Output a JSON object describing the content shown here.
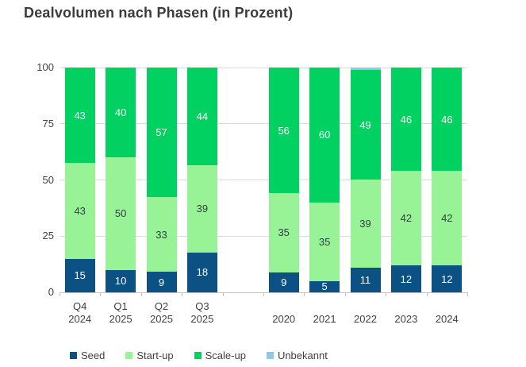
{
  "title": "Dealvolumen nach Phasen (in Prozent)",
  "colors": {
    "background": "#FFFFFF",
    "title_text": "#3B3B3B",
    "axis_text": "#3F3F3F",
    "gridline": "#DBDBDB",
    "axis_line": "#C2C2C2",
    "seed": "#0B5183",
    "startup": "#97F395",
    "scaleup": "#00D160",
    "unbekannt": "#8FC8EC"
  },
  "chart_data": {
    "type": "bar",
    "stacked": true,
    "unit": "percent",
    "title": "Dealvolumen nach Phasen (in Prozent)",
    "ylim": [
      0,
      100
    ],
    "yticks": [
      0,
      25,
      50,
      75,
      100
    ],
    "grid": true,
    "legend_position": "bottom",
    "categories": [
      "Q4 2024",
      "Q1 2025",
      "Q2 2025",
      "Q3 2025",
      "",
      "2020",
      "2021",
      "2022",
      "2023",
      "2024"
    ],
    "series": [
      {
        "name": "Seed",
        "color": "#0B5183",
        "label_color": "#FFFFFF",
        "show_labels": true,
        "values": [
          15,
          10,
          9,
          18,
          null,
          9,
          5,
          11,
          12,
          12
        ]
      },
      {
        "name": "Start-up",
        "color": "#97F395",
        "label_color": "#343F46",
        "show_labels": true,
        "values": [
          43,
          50,
          33,
          39,
          null,
          35,
          35,
          39,
          42,
          42
        ]
      },
      {
        "name": "Scale-up",
        "color": "#00D160",
        "label_color": "#FFFFFF",
        "show_labels": true,
        "values": [
          43,
          40,
          57,
          44,
          null,
          56,
          60,
          49,
          46,
          46
        ]
      },
      {
        "name": "Unbekannt",
        "color": "#8FC8EC",
        "label_color": "#343F46",
        "show_labels": false,
        "values": [
          0,
          0,
          0,
          0,
          null,
          0,
          0,
          1,
          0,
          0
        ]
      }
    ],
    "legend": [
      "Seed",
      "Start-up",
      "Scale-up",
      "Unbekannt"
    ]
  }
}
